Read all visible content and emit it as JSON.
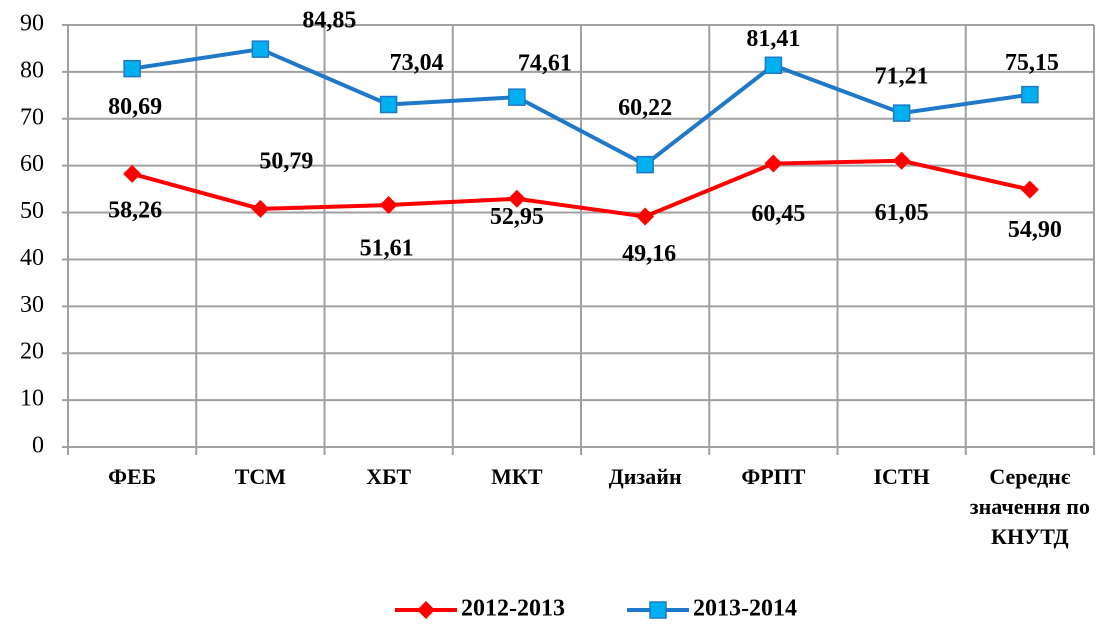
{
  "chart_data": {
    "type": "line",
    "categories": [
      "ФЕБ",
      "ТСМ",
      "ХБТ",
      "МКТ",
      "Дизайн",
      "ФРПТ",
      "ІСТН",
      "Середнє значення по КНУТД"
    ],
    "series": [
      {
        "name": "2012-2013",
        "color": "#ff0000",
        "marker": "diamond",
        "values": [
          58.26,
          50.79,
          51.61,
          52.95,
          49.16,
          60.45,
          61.05,
          54.9
        ],
        "value_labels": [
          "58,26",
          "50,79",
          "51,61",
          "52,95",
          "49,16",
          "60,45",
          "61,05",
          "54,90"
        ]
      },
      {
        "name": "2013-2014",
        "color": "#1f78c8",
        "marker": "square",
        "values": [
          80.69,
          84.85,
          73.04,
          74.61,
          60.22,
          81.41,
          71.21,
          75.15
        ],
        "value_labels": [
          "80,69",
          "84,85",
          "73,04",
          "74,61",
          "60,22",
          "81,41",
          "71,21",
          "75,15"
        ]
      }
    ],
    "ylim": [
      0,
      90
    ],
    "yticks": [
      0,
      10,
      20,
      30,
      40,
      50,
      60,
      70,
      80,
      90
    ],
    "grid": true,
    "legend": "bottom"
  }
}
